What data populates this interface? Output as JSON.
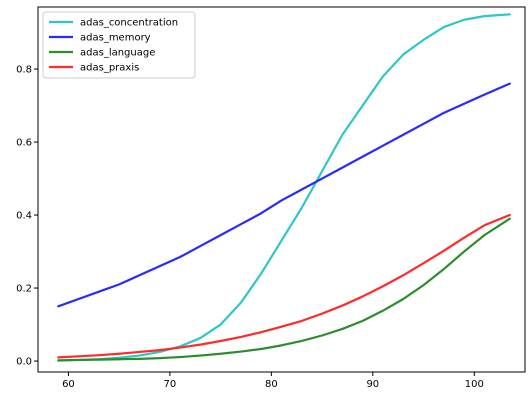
{
  "chart_data": {
    "type": "line",
    "title": "",
    "xlabel": "",
    "ylabel": "",
    "xlim": [
      57,
      105
    ],
    "ylim": [
      -0.03,
      0.97
    ],
    "x_ticks": [
      60,
      70,
      80,
      90,
      100
    ],
    "y_ticks": [
      0.0,
      0.2,
      0.4,
      0.6,
      0.8
    ],
    "x_tick_labels": [
      "60",
      "70",
      "80",
      "90",
      "100"
    ],
    "y_tick_labels": [
      "0.0",
      "0.2",
      "0.4",
      "0.6",
      "0.8"
    ],
    "grid": false,
    "legend_placement": "upper-left",
    "x": [
      59,
      61,
      63,
      65,
      67,
      69,
      71,
      73,
      75,
      77,
      79,
      81,
      83,
      85,
      87,
      89,
      91,
      93,
      95,
      97,
      99,
      101,
      103.5
    ],
    "series": [
      {
        "name": "adas_concentration",
        "color": "#2ec7c9",
        "values": [
          0.001,
          0.003,
          0.005,
          0.009,
          0.015,
          0.025,
          0.04,
          0.063,
          0.1,
          0.16,
          0.24,
          0.33,
          0.42,
          0.52,
          0.62,
          0.7,
          0.78,
          0.84,
          0.88,
          0.915,
          0.935,
          0.945,
          0.95
        ]
      },
      {
        "name": "adas_memory",
        "color": "#2a2aff",
        "values": [
          0.15,
          0.17,
          0.19,
          0.21,
          0.235,
          0.26,
          0.285,
          0.315,
          0.345,
          0.375,
          0.405,
          0.44,
          0.47,
          0.5,
          0.53,
          0.56,
          0.59,
          0.62,
          0.65,
          0.68,
          0.705,
          0.73,
          0.76
        ]
      },
      {
        "name": "adas_language",
        "color": "#2d8c2d",
        "values": [
          0.002,
          0.003,
          0.004,
          0.005,
          0.006,
          0.008,
          0.011,
          0.015,
          0.02,
          0.026,
          0.033,
          0.043,
          0.055,
          0.07,
          0.088,
          0.11,
          0.138,
          0.17,
          0.208,
          0.252,
          0.3,
          0.345,
          0.39
        ]
      },
      {
        "name": "adas_praxis",
        "color": "#ff2a2a",
        "values": [
          0.01,
          0.013,
          0.016,
          0.02,
          0.025,
          0.03,
          0.037,
          0.045,
          0.055,
          0.066,
          0.079,
          0.094,
          0.11,
          0.13,
          0.152,
          0.177,
          0.205,
          0.235,
          0.268,
          0.302,
          0.338,
          0.372,
          0.4
        ]
      }
    ]
  }
}
